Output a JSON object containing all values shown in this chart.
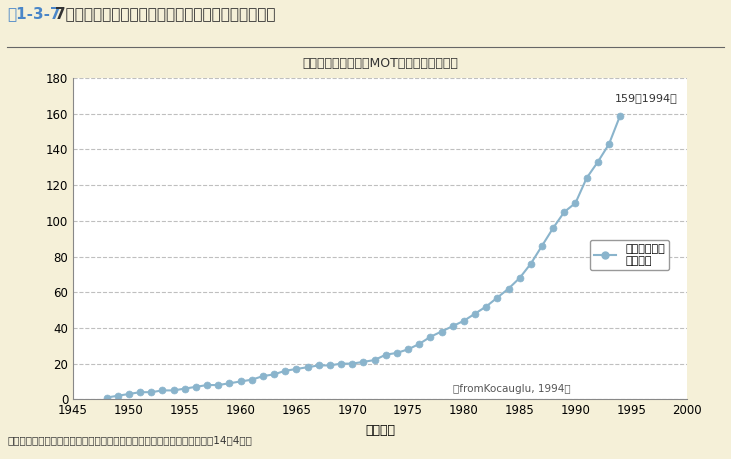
{
  "title_header": "第1-3-77図　米国の大学におけるＭＯＴプログラム数の推移",
  "chart_title": "米国大学／大学院のMOTプログラム数大学",
  "xlabel": "設立年度",
  "ylabel": "",
  "source_text": "資料：産業構造審議会産学連携小委員会最終とりまとめ参考資料集（平成14年4月）",
  "from_text": "（fromKocauglu, 1994）",
  "annotation_text": "159（1994）",
  "legend_label1": "プログラム数",
  "legend_label2": "（累計）",
  "background_color": "#f5f0d8",
  "plot_bg_color": "#ffffff",
  "line_color": "#8ab4cc",
  "marker_color": "#8ab4cc",
  "grid_color": "#b0b0b0",
  "header_color": "#4a86c8",
  "xlim": [
    1945,
    2000
  ],
  "ylim": [
    0,
    180
  ],
  "xticks": [
    1945,
    1950,
    1955,
    1960,
    1965,
    1970,
    1975,
    1980,
    1985,
    1990,
    1995,
    2000
  ],
  "yticks": [
    0,
    20,
    40,
    60,
    80,
    100,
    120,
    140,
    160,
    180
  ],
  "years": [
    1948,
    1949,
    1950,
    1951,
    1952,
    1953,
    1954,
    1955,
    1956,
    1957,
    1958,
    1959,
    1960,
    1961,
    1962,
    1963,
    1964,
    1965,
    1966,
    1967,
    1968,
    1969,
    1970,
    1971,
    1972,
    1973,
    1974,
    1975,
    1976,
    1977,
    1978,
    1979,
    1980,
    1981,
    1982,
    1983,
    1984,
    1985,
    1986,
    1987,
    1988,
    1989,
    1990,
    1991,
    1992,
    1993,
    1994
  ],
  "values": [
    1,
    2,
    3,
    4,
    4,
    5,
    5,
    6,
    7,
    8,
    8,
    9,
    10,
    11,
    13,
    14,
    16,
    17,
    18,
    19,
    19,
    20,
    20,
    21,
    22,
    25,
    26,
    28,
    31,
    35,
    38,
    41,
    44,
    48,
    52,
    57,
    62,
    68,
    76,
    86,
    96,
    105,
    110,
    124,
    133,
    143,
    159
  ]
}
